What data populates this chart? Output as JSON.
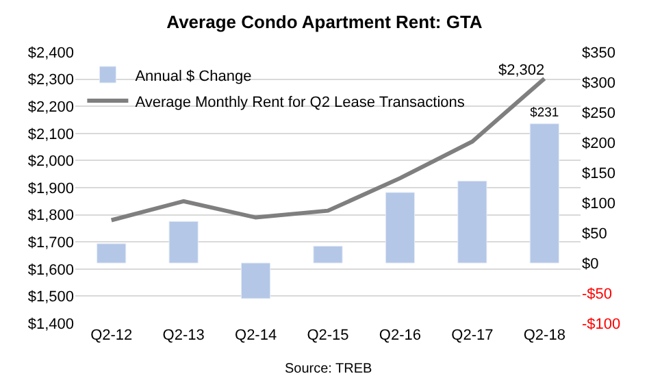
{
  "chart_data": {
    "type": "bar",
    "title": "Average Condo Apartment Rent: GTA",
    "categories": [
      "Q2-12",
      "Q2-13",
      "Q2-14",
      "Q2-15",
      "Q2-16",
      "Q2-17",
      "Q2-18"
    ],
    "series": [
      {
        "name": "Annual $ Change",
        "axis": "y2",
        "color": "#b4c7e7",
        "values": [
          32,
          69,
          -59,
          28,
          117,
          136,
          231
        ],
        "value_labels": [
          null,
          null,
          null,
          null,
          null,
          null,
          "$231"
        ]
      },
      {
        "name": "Average Monthly Rent for Q2 Lease Transactions",
        "type": "line",
        "color": "#7f7f7f",
        "values": [
          1780,
          1850,
          1790,
          1815,
          1935,
          2070,
          2302
        ],
        "value_labels": [
          null,
          null,
          null,
          null,
          null,
          null,
          "$2,302"
        ]
      }
    ],
    "ylim": [
      1400,
      2400
    ],
    "yticks": [
      {
        "value": 1400,
        "label": "$1,400"
      },
      {
        "value": 1500,
        "label": "$1,500"
      },
      {
        "value": 1600,
        "label": "$1,600"
      },
      {
        "value": 1700,
        "label": "$1,700"
      },
      {
        "value": 1800,
        "label": "$1,800"
      },
      {
        "value": 1900,
        "label": "$1,900"
      },
      {
        "value": 2000,
        "label": "$2,000"
      },
      {
        "value": 2100,
        "label": "$2,100"
      },
      {
        "value": 2200,
        "label": "$2,200"
      },
      {
        "value": 2300,
        "label": "$2,300"
      },
      {
        "value": 2400,
        "label": "$2,400"
      }
    ],
    "y2lim": [
      -100,
      350
    ],
    "y2ticks": [
      {
        "value": -100,
        "label": "-$100"
      },
      {
        "value": -50,
        "label": "-$50"
      },
      {
        "value": 0,
        "label": "$0"
      },
      {
        "value": 50,
        "label": "$50"
      },
      {
        "value": 100,
        "label": "$100"
      },
      {
        "value": 150,
        "label": "$150"
      },
      {
        "value": 200,
        "label": "$200"
      },
      {
        "value": 250,
        "label": "$250"
      },
      {
        "value": 300,
        "label": "$300"
      },
      {
        "value": 350,
        "label": "$350"
      }
    ],
    "grid": "y",
    "legend": "top left",
    "marker": "none",
    "line_style": "solid",
    "annotations": [
      "Source: TREB"
    ]
  }
}
